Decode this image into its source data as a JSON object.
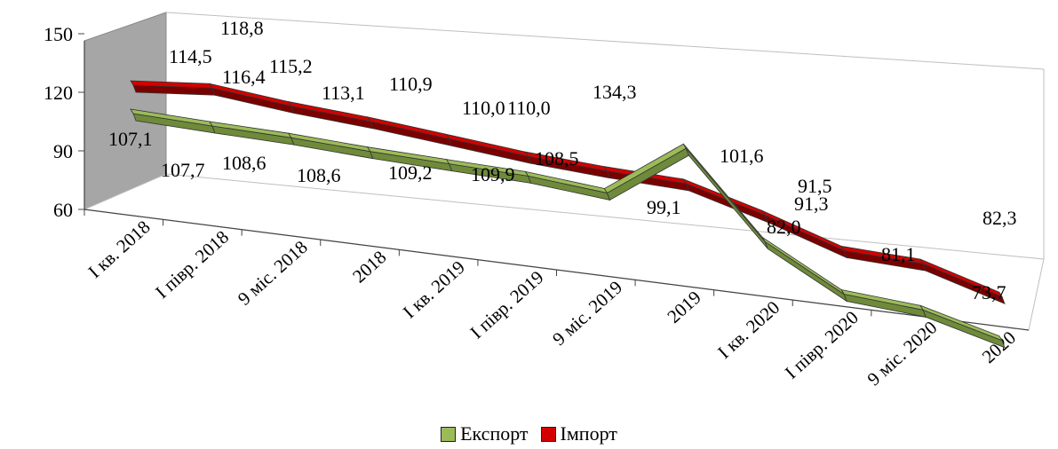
{
  "chart_data": {
    "type": "line",
    "title": "",
    "categories": [
      "I кв. 2018",
      "I півр. 2018",
      "9 міс. 2018",
      "2018",
      "I кв. 2019",
      "I півр. 2019",
      "9 міс. 2019",
      "2019",
      "I кв. 2020",
      "I півр. 2020",
      "9 міс. 2020",
      "2020"
    ],
    "series": [
      {
        "name": "Експорт",
        "values": [
          107.1,
          107.7,
          108.6,
          108.6,
          109.2,
          109.9,
          108.5,
          134.3,
          99.1,
          82.0,
          81.1,
          73.7
        ],
        "labels": [
          "107,1",
          "107,7",
          "108,6",
          "108,6",
          "109,2",
          "109,9",
          "108,5",
          "134,3",
          "99,1",
          "82,0",
          "81,1",
          "73,7"
        ],
        "color": "#9bbb59"
      },
      {
        "name": "Імпорт",
        "values": [
          114.5,
          118.8,
          116.4,
          115.2,
          113.1,
          110.9,
          110.0,
          110.0,
          101.6,
          91.5,
          91.3,
          82.3
        ],
        "labels": [
          "114,5",
          "118,8",
          "116,4",
          "115,2",
          "113,1",
          "110,9",
          "110,0",
          "110,0",
          "101,6",
          "91,5",
          "91,3",
          "82,3"
        ],
        "color": "#d40000"
      }
    ],
    "ylim": [
      60,
      150
    ],
    "yticks": [
      "60",
      "90",
      "120",
      "150"
    ],
    "grid": false,
    "legend": "bottom",
    "style": "3d-line"
  },
  "legend": {
    "export_label": "Експорт",
    "import_label": "Імпорт"
  }
}
